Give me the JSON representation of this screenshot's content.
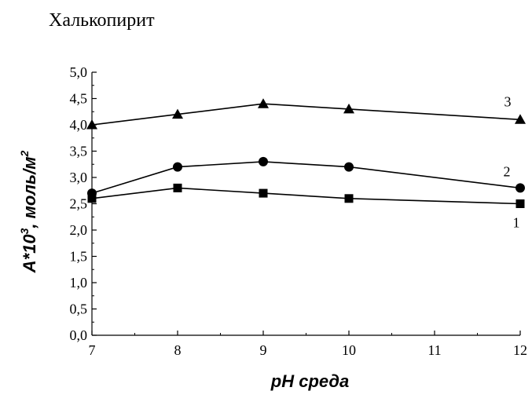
{
  "title": "Халькопирит",
  "chart_data": {
    "type": "line",
    "title": "Халькопирит",
    "xlabel": "pH среда",
    "ylabel": {
      "prefix": "A*10",
      "prefix_sup": "3",
      "suffix": ", моль/м",
      "suffix_sup": "2"
    },
    "xlim": [
      7,
      12
    ],
    "ylim": [
      0,
      5
    ],
    "x_ticks": [
      "7",
      "8",
      "9",
      "10",
      "11",
      "12"
    ],
    "y_ticks": [
      "0,0",
      "0,5",
      "1,0",
      "1,5",
      "2,0",
      "2,5",
      "3,0",
      "3,5",
      "4,0",
      "4,5",
      "5,0"
    ],
    "x": [
      7,
      8,
      9,
      10,
      12
    ],
    "series": [
      {
        "name": "1",
        "marker": "square",
        "values": [
          2.6,
          2.8,
          2.7,
          2.6,
          2.5
        ]
      },
      {
        "name": "2",
        "marker": "circle",
        "values": [
          2.7,
          3.2,
          3.3,
          3.2,
          2.8
        ]
      },
      {
        "name": "3",
        "marker": "triangle",
        "values": [
          4.0,
          4.2,
          4.4,
          4.3,
          4.1
        ]
      }
    ],
    "grid": false,
    "legend": "inline-right",
    "colors": {
      "line": "#000000",
      "marker": "#000000"
    }
  }
}
